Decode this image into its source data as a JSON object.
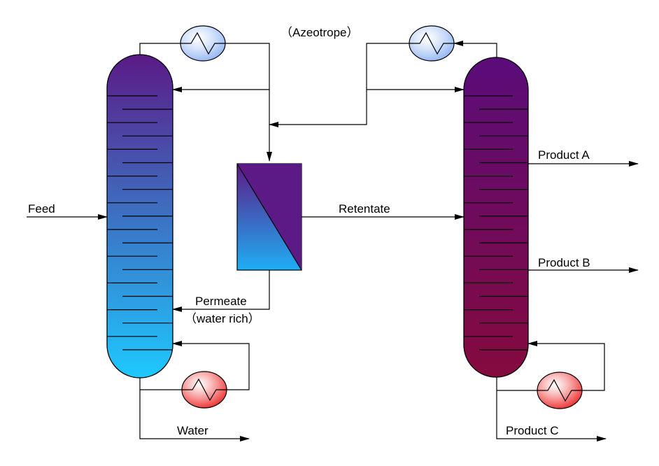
{
  "labels": {
    "azeotrope": "（Azeotrope）",
    "feed": "Feed",
    "retentate": "Retentate",
    "permeate": "Permeate",
    "water_rich": "（water rich）",
    "water": "Water",
    "product_a": "Product A",
    "product_b": "Product B",
    "product_c": "Product C"
  },
  "colors": {
    "column1_top": "#5b1a86",
    "column1_bottom": "#1ec8ff",
    "column2_top": "#5a0c7a",
    "column2_bottom": "#850a3e",
    "membrane_top": "#5c1a86",
    "membrane_bottom": "#1eaef4",
    "condenser": "#8fb4f2",
    "reboiler": "#ee2a2a"
  },
  "icons": {
    "condenser": "heat-exchanger-icon",
    "reboiler": "heat-exchanger-icon"
  }
}
